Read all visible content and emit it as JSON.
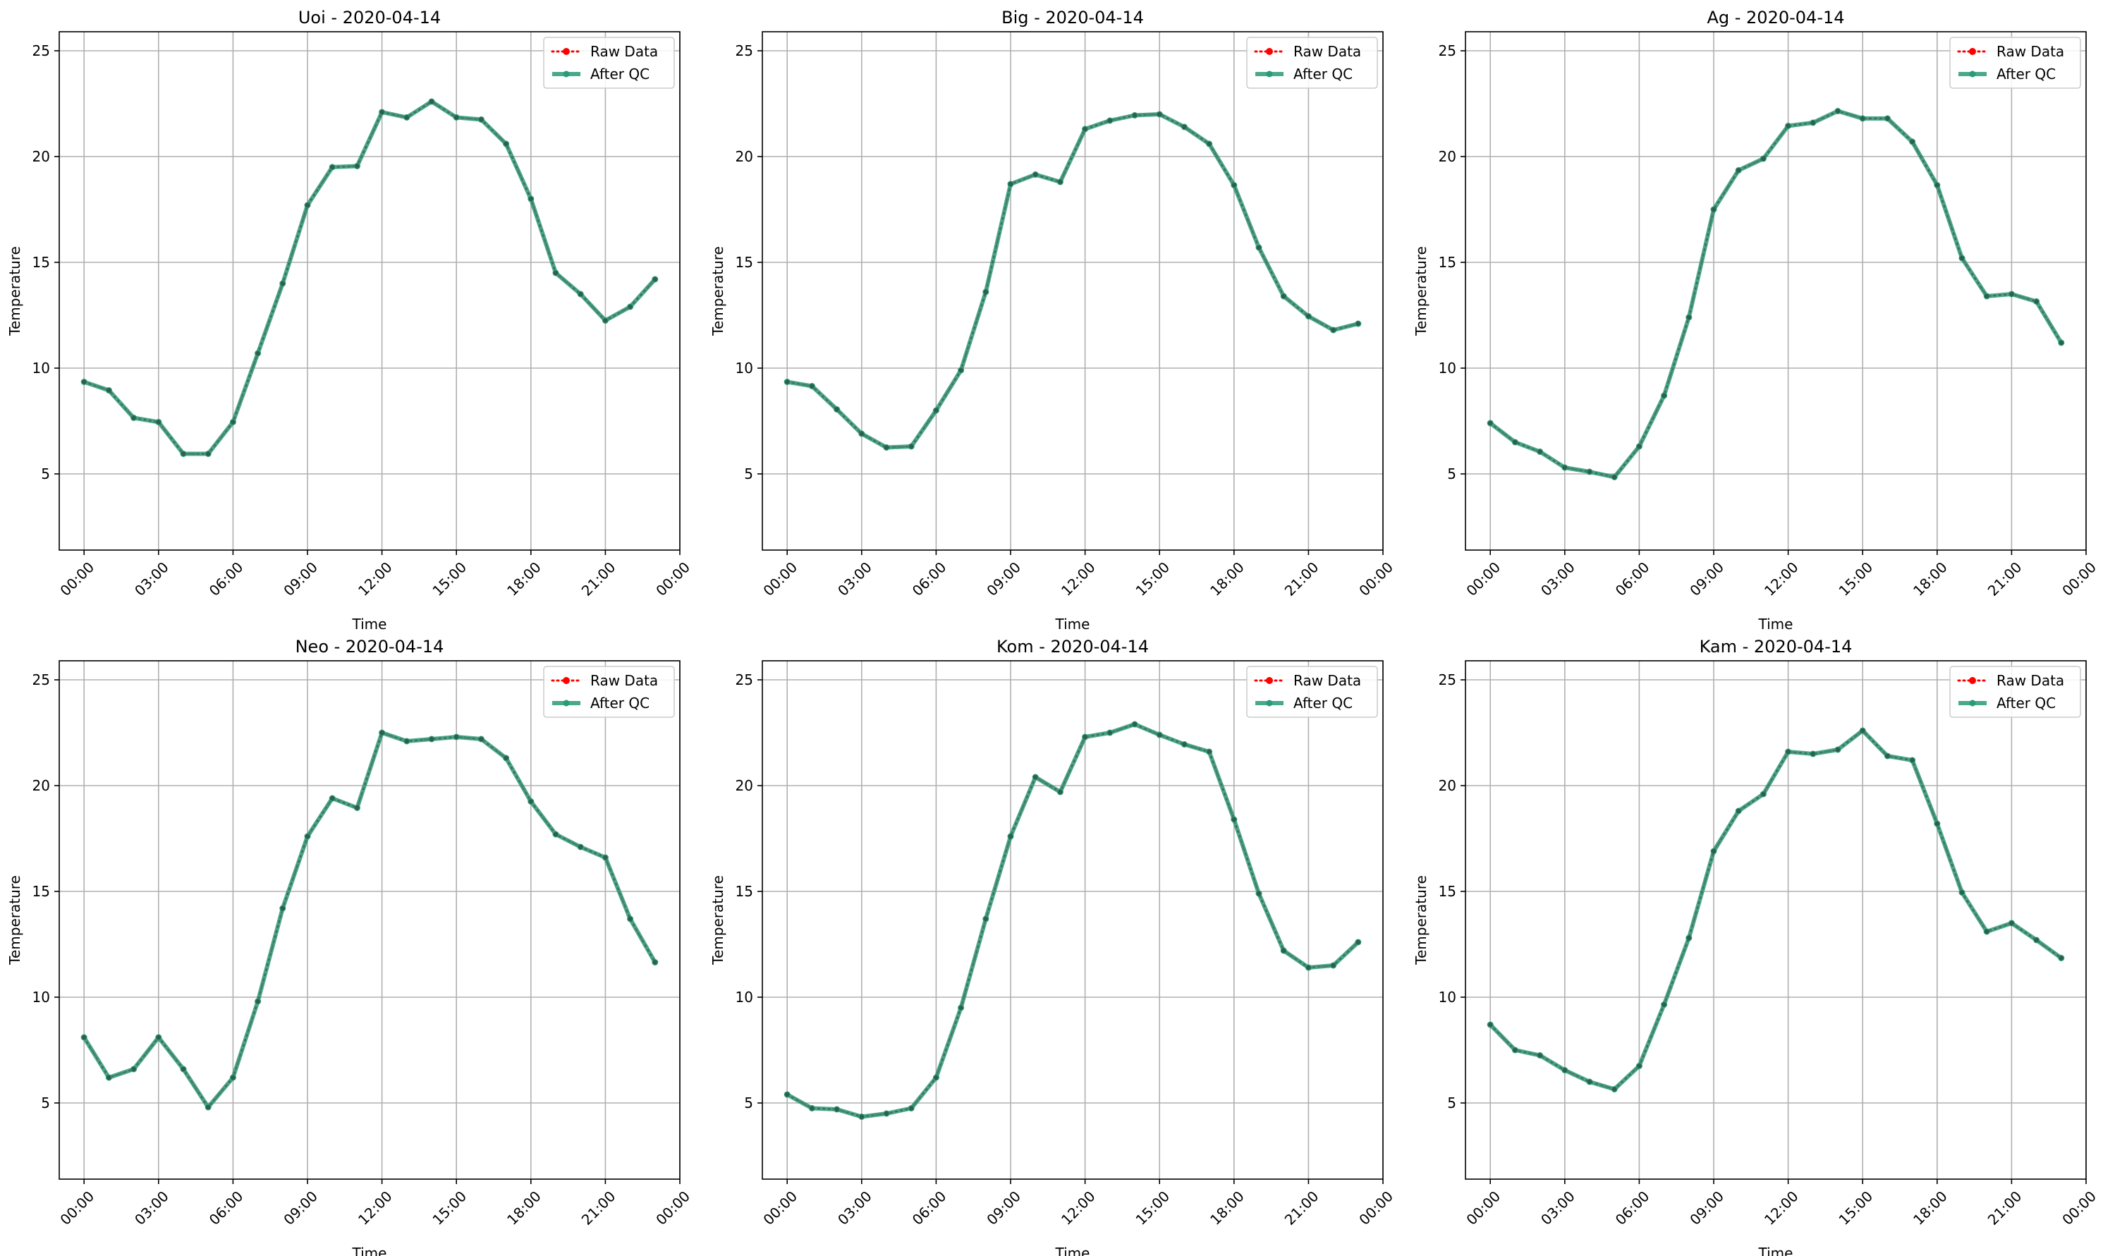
{
  "chart_data": [
    {
      "type": "line",
      "title": "Uoi - 2020-04-14",
      "xlabel": "Time",
      "ylabel": "Temperature",
      "xlim": [
        -1,
        24
      ],
      "ylim": [
        1.4,
        25.9
      ],
      "yticks": [
        5,
        10,
        15,
        20,
        25
      ],
      "xtick_values": [
        0,
        3,
        6,
        9,
        12,
        15,
        18,
        21,
        24
      ],
      "xtick_labels": [
        "00:00",
        "03:00",
        "06:00",
        "09:00",
        "12:00",
        "15:00",
        "18:00",
        "21:00",
        "00:00"
      ],
      "grid": true,
      "legend_position": "top-right",
      "x": [
        "00:00",
        "01:00",
        "02:00",
        "03:00",
        "04:00",
        "05:00",
        "06:00",
        "07:00",
        "08:00",
        "09:00",
        "10:00",
        "11:00",
        "12:00",
        "13:00",
        "14:00",
        "15:00",
        "16:00",
        "17:00",
        "18:00",
        "19:00",
        "20:00",
        "21:00",
        "22:00",
        "23:00"
      ],
      "series": [
        {
          "name": "Raw Data",
          "color": "#ff0000",
          "style": "dotted",
          "values": [
            9.35,
            8.95,
            7.65,
            7.45,
            5.95,
            5.95,
            7.45,
            10.7,
            14.0,
            17.7,
            19.5,
            19.55,
            22.1,
            21.85,
            22.6,
            21.85,
            21.75,
            20.6,
            18.0,
            14.5,
            13.5,
            12.25,
            12.9,
            14.2
          ]
        },
        {
          "name": "After QC",
          "color": "#2a9a78",
          "style": "solid",
          "values": [
            9.35,
            8.95,
            7.65,
            7.45,
            5.95,
            5.95,
            7.45,
            10.7,
            14.0,
            17.7,
            19.5,
            19.55,
            22.1,
            21.85,
            22.6,
            21.85,
            21.75,
            20.6,
            18.0,
            14.5,
            13.5,
            12.25,
            12.9,
            14.2
          ]
        }
      ]
    },
    {
      "type": "line",
      "title": "Big - 2020-04-14",
      "xlabel": "Time",
      "ylabel": "Temperature",
      "xlim": [
        -1,
        24
      ],
      "ylim": [
        1.4,
        25.9
      ],
      "yticks": [
        5,
        10,
        15,
        20,
        25
      ],
      "xtick_values": [
        0,
        3,
        6,
        9,
        12,
        15,
        18,
        21,
        24
      ],
      "xtick_labels": [
        "00:00",
        "03:00",
        "06:00",
        "09:00",
        "12:00",
        "15:00",
        "18:00",
        "21:00",
        "00:00"
      ],
      "grid": true,
      "legend_position": "top-right",
      "x": [
        "00:00",
        "01:00",
        "02:00",
        "03:00",
        "04:00",
        "05:00",
        "06:00",
        "07:00",
        "08:00",
        "09:00",
        "10:00",
        "11:00",
        "12:00",
        "13:00",
        "14:00",
        "15:00",
        "16:00",
        "17:00",
        "18:00",
        "19:00",
        "20:00",
        "21:00",
        "22:00",
        "23:00"
      ],
      "series": [
        {
          "name": "Raw Data",
          "color": "#ff0000",
          "style": "dotted",
          "values": [
            9.35,
            9.15,
            8.05,
            6.9,
            6.25,
            6.3,
            8.0,
            9.9,
            13.6,
            18.7,
            19.15,
            18.8,
            21.3,
            21.7,
            21.95,
            22.0,
            21.4,
            20.6,
            18.65,
            15.7,
            13.4,
            12.45,
            11.8,
            12.1
          ]
        },
        {
          "name": "After QC",
          "color": "#2a9a78",
          "style": "solid",
          "values": [
            9.35,
            9.15,
            8.05,
            6.9,
            6.25,
            6.3,
            8.0,
            9.9,
            13.6,
            18.7,
            19.15,
            18.8,
            21.3,
            21.7,
            21.95,
            22.0,
            21.4,
            20.6,
            18.65,
            15.7,
            13.4,
            12.45,
            11.8,
            12.1
          ]
        }
      ]
    },
    {
      "type": "line",
      "title": "Ag - 2020-04-14",
      "xlabel": "Time",
      "ylabel": "Temperature",
      "xlim": [
        -1,
        24
      ],
      "ylim": [
        1.4,
        25.9
      ],
      "yticks": [
        5,
        10,
        15,
        20,
        25
      ],
      "xtick_values": [
        0,
        3,
        6,
        9,
        12,
        15,
        18,
        21,
        24
      ],
      "xtick_labels": [
        "00:00",
        "03:00",
        "06:00",
        "09:00",
        "12:00",
        "15:00",
        "18:00",
        "21:00",
        "00:00"
      ],
      "grid": true,
      "legend_position": "top-right",
      "x": [
        "00:00",
        "01:00",
        "02:00",
        "03:00",
        "04:00",
        "05:00",
        "06:00",
        "07:00",
        "08:00",
        "09:00",
        "10:00",
        "11:00",
        "12:00",
        "13:00",
        "14:00",
        "15:00",
        "16:00",
        "17:00",
        "18:00",
        "19:00",
        "20:00",
        "21:00",
        "22:00",
        "23:00"
      ],
      "series": [
        {
          "name": "Raw Data",
          "color": "#ff0000",
          "style": "dotted",
          "values": [
            7.4,
            6.5,
            6.05,
            5.3,
            5.1,
            4.85,
            6.3,
            8.7,
            12.4,
            17.5,
            19.35,
            19.9,
            21.45,
            21.6,
            22.15,
            21.8,
            21.8,
            20.7,
            18.65,
            15.2,
            13.4,
            13.5,
            13.15,
            11.2
          ]
        },
        {
          "name": "After QC",
          "color": "#2a9a78",
          "style": "solid",
          "values": [
            7.4,
            6.5,
            6.05,
            5.3,
            5.1,
            4.85,
            6.3,
            8.7,
            12.4,
            17.5,
            19.35,
            19.9,
            21.45,
            21.6,
            22.15,
            21.8,
            21.8,
            20.7,
            18.65,
            15.2,
            13.4,
            13.5,
            13.15,
            11.2
          ]
        }
      ]
    },
    {
      "type": "line",
      "title": "Neo - 2020-04-14",
      "xlabel": "Time",
      "ylabel": "Temperature",
      "xlim": [
        -1,
        24
      ],
      "ylim": [
        1.4,
        25.9
      ],
      "yticks": [
        5,
        10,
        15,
        20,
        25
      ],
      "xtick_values": [
        0,
        3,
        6,
        9,
        12,
        15,
        18,
        21,
        24
      ],
      "xtick_labels": [
        "00:00",
        "03:00",
        "06:00",
        "09:00",
        "12:00",
        "15:00",
        "18:00",
        "21:00",
        "00:00"
      ],
      "grid": true,
      "legend_position": "top-right",
      "x": [
        "00:00",
        "01:00",
        "02:00",
        "03:00",
        "04:00",
        "05:00",
        "06:00",
        "07:00",
        "08:00",
        "09:00",
        "10:00",
        "11:00",
        "12:00",
        "13:00",
        "14:00",
        "15:00",
        "16:00",
        "17:00",
        "18:00",
        "19:00",
        "20:00",
        "21:00",
        "22:00",
        "23:00"
      ],
      "series": [
        {
          "name": "Raw Data",
          "color": "#ff0000",
          "style": "dotted",
          "values": [
            8.1,
            6.2,
            6.6,
            8.1,
            6.6,
            4.8,
            6.2,
            9.8,
            14.2,
            17.6,
            19.4,
            18.95,
            22.5,
            22.1,
            22.2,
            22.3,
            22.2,
            21.3,
            19.25,
            17.7,
            17.1,
            16.6,
            13.7,
            11.65
          ]
        },
        {
          "name": "After QC",
          "color": "#2a9a78",
          "style": "solid",
          "values": [
            8.1,
            6.2,
            6.6,
            8.1,
            6.6,
            4.8,
            6.2,
            9.8,
            14.2,
            17.6,
            19.4,
            18.95,
            22.5,
            22.1,
            22.2,
            22.3,
            22.2,
            21.3,
            19.25,
            17.7,
            17.1,
            16.6,
            13.7,
            11.65
          ]
        }
      ]
    },
    {
      "type": "line",
      "title": "Kom - 2020-04-14",
      "xlabel": "Time",
      "ylabel": "Temperature",
      "xlim": [
        -1,
        24
      ],
      "ylim": [
        1.4,
        25.9
      ],
      "yticks": [
        5,
        10,
        15,
        20,
        25
      ],
      "xtick_values": [
        0,
        3,
        6,
        9,
        12,
        15,
        18,
        21,
        24
      ],
      "xtick_labels": [
        "00:00",
        "03:00",
        "06:00",
        "09:00",
        "12:00",
        "15:00",
        "18:00",
        "21:00",
        "00:00"
      ],
      "grid": true,
      "legend_position": "top-right",
      "x": [
        "00:00",
        "01:00",
        "02:00",
        "03:00",
        "04:00",
        "05:00",
        "06:00",
        "07:00",
        "08:00",
        "09:00",
        "10:00",
        "11:00",
        "12:00",
        "13:00",
        "14:00",
        "15:00",
        "16:00",
        "17:00",
        "18:00",
        "19:00",
        "20:00",
        "21:00",
        "22:00",
        "23:00"
      ],
      "series": [
        {
          "name": "Raw Data",
          "color": "#ff0000",
          "style": "dotted",
          "values": [
            5.4,
            4.75,
            4.7,
            4.35,
            4.5,
            4.75,
            6.2,
            9.5,
            13.7,
            17.6,
            20.4,
            19.7,
            22.3,
            22.5,
            22.9,
            22.4,
            21.95,
            21.6,
            18.4,
            14.9,
            12.2,
            11.4,
            11.5,
            12.6
          ]
        },
        {
          "name": "After QC",
          "color": "#2a9a78",
          "style": "solid",
          "values": [
            5.4,
            4.75,
            4.7,
            4.35,
            4.5,
            4.75,
            6.2,
            9.5,
            13.7,
            17.6,
            20.4,
            19.7,
            22.3,
            22.5,
            22.9,
            22.4,
            21.95,
            21.6,
            18.4,
            14.9,
            12.2,
            11.4,
            11.5,
            12.6
          ]
        }
      ]
    },
    {
      "type": "line",
      "title": "Kam - 2020-04-14",
      "xlabel": "Time",
      "ylabel": "Temperature",
      "xlim": [
        -1,
        24
      ],
      "ylim": [
        1.4,
        25.9
      ],
      "yticks": [
        5,
        10,
        15,
        20,
        25
      ],
      "xtick_values": [
        0,
        3,
        6,
        9,
        12,
        15,
        18,
        21,
        24
      ],
      "xtick_labels": [
        "00:00",
        "03:00",
        "06:00",
        "09:00",
        "12:00",
        "15:00",
        "18:00",
        "21:00",
        "00:00"
      ],
      "grid": true,
      "legend_position": "top-right",
      "x": [
        "00:00",
        "01:00",
        "02:00",
        "03:00",
        "04:00",
        "05:00",
        "06:00",
        "07:00",
        "08:00",
        "09:00",
        "10:00",
        "11:00",
        "12:00",
        "13:00",
        "14:00",
        "15:00",
        "16:00",
        "17:00",
        "18:00",
        "19:00",
        "20:00",
        "21:00",
        "22:00",
        "23:00"
      ],
      "series": [
        {
          "name": "Raw Data",
          "color": "#ff0000",
          "style": "dotted",
          "values": [
            8.7,
            7.5,
            7.25,
            6.55,
            6.0,
            5.65,
            6.75,
            9.65,
            12.8,
            16.9,
            18.8,
            19.6,
            21.6,
            21.5,
            21.7,
            22.6,
            21.4,
            21.2,
            18.2,
            14.95,
            13.1,
            13.5,
            12.7,
            11.85
          ]
        },
        {
          "name": "After QC",
          "color": "#2a9a78",
          "style": "solid",
          "values": [
            8.7,
            7.5,
            7.25,
            6.55,
            6.0,
            5.65,
            6.75,
            9.65,
            12.8,
            16.9,
            18.8,
            19.6,
            21.6,
            21.5,
            21.7,
            22.6,
            21.4,
            21.2,
            18.2,
            14.95,
            13.1,
            13.5,
            12.7,
            11.85
          ]
        }
      ]
    }
  ]
}
